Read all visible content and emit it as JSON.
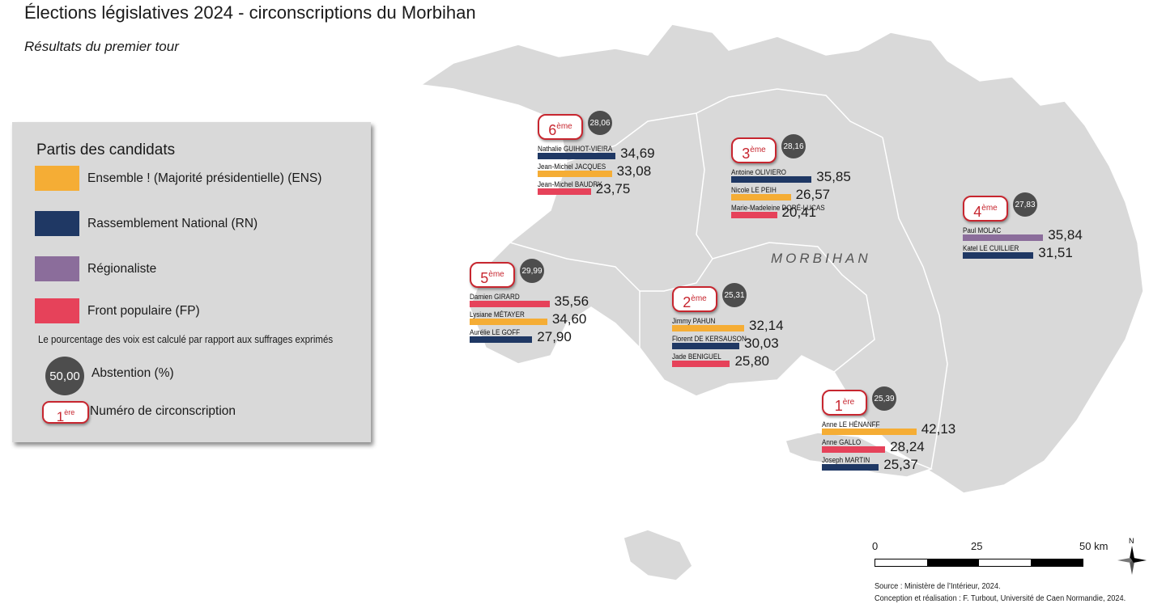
{
  "header": {
    "title": "Élections législatives 2024 - circonscriptions du Morbihan",
    "subtitle": "Résultats du premier tour"
  },
  "map": {
    "region_label": "MORBIHAN",
    "land_color": "#d9d9d9",
    "border_color": "#ffffff"
  },
  "legend": {
    "title": "Partis des candidats",
    "parties": [
      {
        "label": "Ensemble ! (Majorité présidentielle) (ENS)",
        "color": "#f5ad35"
      },
      {
        "label": "Rassemblement National (RN)",
        "color": "#1f3864"
      },
      {
        "label": "Régionaliste",
        "color": "#8b6d9b"
      },
      {
        "label": "Front populaire (FP)",
        "color": "#e6425a"
      }
    ],
    "note": "Le pourcentage des voix est calculé par rapport aux suffrages exprimés",
    "abstention_symbol": "50,00",
    "abstention_label": "Abstention (%)",
    "circ_symbol_num": "1",
    "circ_symbol_sup": "ère",
    "circ_label": "Numéro de circonscription"
  },
  "districts": [
    {
      "num": "1",
      "sup": "ère",
      "abstention": "25,39",
      "candidates": [
        {
          "name": "Anne LE HÉNANFF",
          "party": "ENS",
          "pct": "42,13",
          "value": 42.13
        },
        {
          "name": "Anne GALLO",
          "party": "FP",
          "pct": "28,24",
          "value": 28.24
        },
        {
          "name": "Joseph MARTIN",
          "party": "RN",
          "pct": "25,37",
          "value": 25.37
        }
      ]
    },
    {
      "num": "2",
      "sup": "ème",
      "abstention": "25,31",
      "candidates": [
        {
          "name": "Jimmy PAHUN",
          "party": "ENS",
          "pct": "32,14",
          "value": 32.14
        },
        {
          "name": "Florent DE KERSAUSON",
          "party": "RN",
          "pct": "30,03",
          "value": 30.03
        },
        {
          "name": "Jade BENIGUEL",
          "party": "FP",
          "pct": "25,80",
          "value": 25.8
        }
      ]
    },
    {
      "num": "3",
      "sup": "ème",
      "abstention": "28,16",
      "candidates": [
        {
          "name": "Antoine OLIVIERO",
          "party": "RN",
          "pct": "35,85",
          "value": 35.85
        },
        {
          "name": "Nicole LE PEIH",
          "party": "ENS",
          "pct": "26,57",
          "value": 26.57
        },
        {
          "name": "Marie-Madeleine DORÉ-LUCAS",
          "party": "FP",
          "pct": "20,41",
          "value": 20.41
        }
      ]
    },
    {
      "num": "4",
      "sup": "ème",
      "abstention": "27,83",
      "candidates": [
        {
          "name": "Paul MOLAC",
          "party": "REG",
          "pct": "35,84",
          "value": 35.84
        },
        {
          "name": "Katel LE CUILLIER",
          "party": "RN",
          "pct": "31,51",
          "value": 31.51
        }
      ]
    },
    {
      "num": "5",
      "sup": "ème",
      "abstention": "29,99",
      "candidates": [
        {
          "name": "Damien GIRARD",
          "party": "FP",
          "pct": "35,56",
          "value": 35.56
        },
        {
          "name": "Lysiane MÉTAYER",
          "party": "ENS",
          "pct": "34,60",
          "value": 34.6
        },
        {
          "name": "Aurélie LE GOFF",
          "party": "RN",
          "pct": "27,90",
          "value": 27.9
        }
      ]
    },
    {
      "num": "6",
      "sup": "ème",
      "abstention": "28,06",
      "candidates": [
        {
          "name": "Nathalie GUIHOT-VIEIRA",
          "party": "RN",
          "pct": "34,69",
          "value": 34.69
        },
        {
          "name": "Jean-Michel JACQUES",
          "party": "ENS",
          "pct": "33,08",
          "value": 33.08
        },
        {
          "name": "Jean-Michel BAUDRY",
          "party": "FP",
          "pct": "23,75",
          "value": 23.75
        }
      ]
    }
  ],
  "party_colors": {
    "ENS": "#f5ad35",
    "RN": "#1f3864",
    "REG": "#8b6d9b",
    "FP": "#e6425a"
  },
  "scale": {
    "labels": [
      "0",
      "25",
      "50 km"
    ]
  },
  "north_label": "N",
  "source": {
    "line1": "Source : Ministère de l’Intérieur, 2024.",
    "line2": "Conception et réalisation : F. Turbout, Université de Caen Normandie, 2024."
  }
}
